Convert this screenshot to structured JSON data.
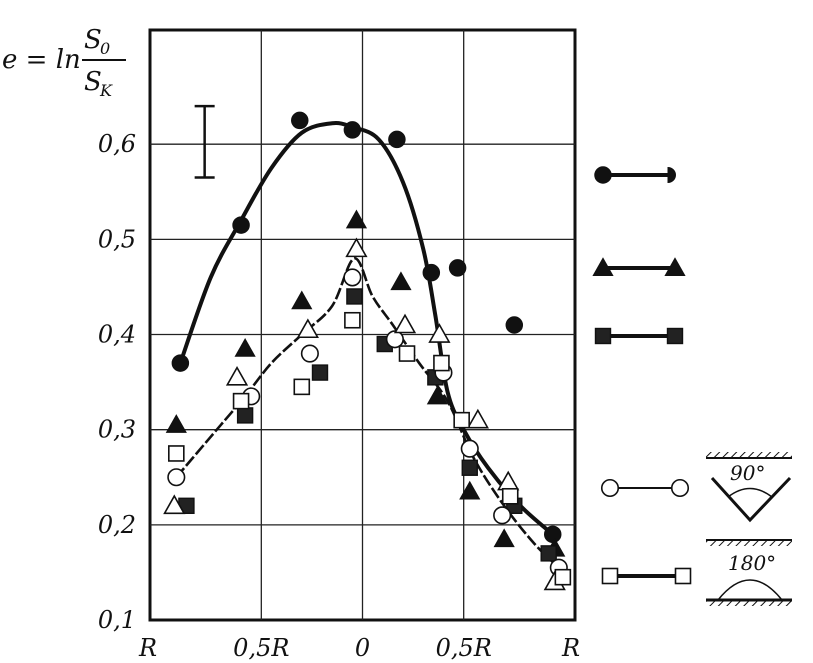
{
  "chart_data": {
    "type": "scatter",
    "ylabel": {
      "prefix": "e = ln",
      "numerator": "S",
      "numerator_sub": "0",
      "denominator": "S",
      "denominator_sub": "K"
    },
    "x_tick_labels": [
      "R",
      "0,5R",
      "0",
      "0,5R",
      "R"
    ],
    "y_tick_labels": [
      "0,1",
      "0,2",
      "0,3",
      "0,4",
      "0,5",
      "0,6"
    ],
    "x_ticks": [
      -1,
      -0.5,
      0,
      0.5,
      1
    ],
    "y_ticks": [
      0.1,
      0.2,
      0.3,
      0.4,
      0.5,
      0.6
    ],
    "xlim": [
      -1.05,
      1.05
    ],
    "ylim": [
      0.1,
      0.72
    ],
    "grid": true,
    "error_bar": {
      "x": -0.78,
      "low": 0.565,
      "high": 0.64
    },
    "series": [
      {
        "marker": "filled-circle",
        "x": [
          -0.9,
          -0.6,
          -0.31,
          -0.05,
          0.17,
          0.34,
          0.47,
          0.75,
          0.94
        ],
        "y": [
          0.37,
          0.515,
          0.625,
          0.615,
          0.605,
          0.465,
          0.47,
          0.41,
          0.19
        ],
        "curve_x": [
          -0.9,
          -0.75,
          -0.6,
          -0.45,
          -0.3,
          -0.15,
          -0.05,
          0.08,
          0.2,
          0.3,
          0.36,
          0.42,
          0.5,
          0.62,
          0.78,
          0.94
        ],
        "curve_y": [
          0.37,
          0.46,
          0.52,
          0.575,
          0.612,
          0.622,
          0.618,
          0.605,
          0.56,
          0.49,
          0.42,
          0.34,
          0.3,
          0.26,
          0.22,
          0.19
        ]
      },
      {
        "marker": "filled-triangle",
        "x": [
          -0.92,
          -0.58,
          -0.3,
          -0.03,
          0.19,
          0.37,
          0.53,
          0.7,
          0.95
        ],
        "y": [
          0.305,
          0.385,
          0.435,
          0.52,
          0.455,
          0.335,
          0.235,
          0.185,
          0.175
        ],
        "curve_x": [],
        "curve_y": []
      },
      {
        "marker": "filled-square",
        "x": [
          -0.87,
          -0.58,
          -0.21,
          -0.04,
          0.11,
          0.36,
          0.53,
          0.75,
          0.92
        ],
        "y": [
          0.22,
          0.315,
          0.36,
          0.44,
          0.39,
          0.355,
          0.26,
          0.22,
          0.17
        ],
        "curve_x": [],
        "curve_y": []
      },
      {
        "marker": "open-circle",
        "x": [
          -0.92,
          -0.55,
          -0.26,
          -0.05,
          0.16,
          0.4,
          0.53,
          0.69,
          0.97
        ],
        "y": [
          0.25,
          0.335,
          0.38,
          0.46,
          0.395,
          0.36,
          0.28,
          0.21,
          0.155
        ],
        "curve_x": [
          -0.92,
          -0.8,
          -0.7,
          -0.58,
          -0.45,
          -0.3,
          -0.15,
          -0.04,
          0.05,
          0.15,
          0.28,
          0.42,
          0.55,
          0.7,
          0.85,
          0.97
        ],
        "curve_y": [
          0.25,
          0.28,
          0.305,
          0.335,
          0.37,
          0.4,
          0.43,
          0.48,
          0.44,
          0.41,
          0.37,
          0.33,
          0.27,
          0.22,
          0.18,
          0.155
        ]
      },
      {
        "marker": "open-triangle",
        "x": [
          -0.93,
          -0.62,
          -0.27,
          -0.03,
          0.21,
          0.38,
          0.57,
          0.72,
          0.95
        ],
        "y": [
          0.22,
          0.355,
          0.405,
          0.49,
          0.41,
          0.4,
          0.31,
          0.245,
          0.14
        ],
        "curve_x": [],
        "curve_y": []
      },
      {
        "marker": "open-square",
        "x": [
          -0.92,
          -0.6,
          -0.3,
          -0.05,
          0.22,
          0.39,
          0.49,
          0.73,
          0.99
        ],
        "y": [
          0.275,
          0.33,
          0.345,
          0.415,
          0.38,
          0.37,
          0.31,
          0.23,
          0.145
        ],
        "curve_x": [],
        "curve_y": []
      }
    ],
    "legend_placement": "right",
    "legend_items": [
      {
        "line": "thick",
        "marker_left": "filled-circle",
        "marker_right": "half-circle"
      },
      {
        "line": "thick",
        "marker_left": "filled-triangle",
        "marker_right": "filled-triangle"
      },
      {
        "line": "thick",
        "marker_left": "filled-square",
        "marker_right": "filled-square"
      },
      {
        "line": "thin",
        "marker_left": "open-circle",
        "marker_right": "open-circle",
        "inset_label": "90°"
      },
      {
        "line": "thick",
        "marker_left": "open-square",
        "marker_right": "open-square",
        "inset_label": "180°"
      }
    ]
  }
}
